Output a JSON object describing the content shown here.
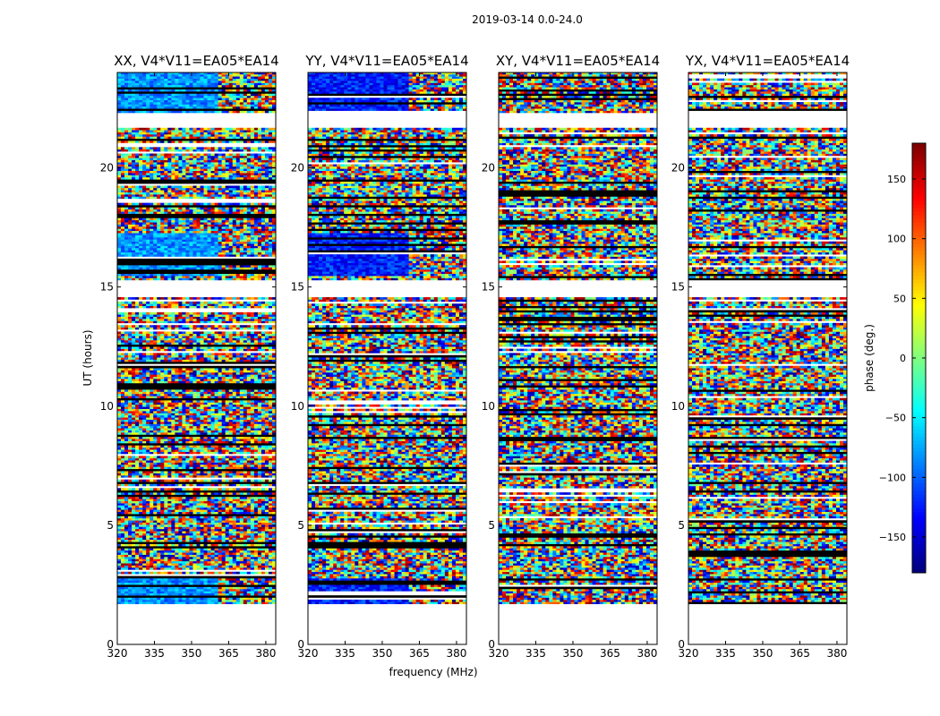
{
  "chart_data": {
    "type": "heatmap",
    "suptitle": "2019-03-14 0.0-24.0",
    "xlabel": "frequency (MHz)",
    "ylabel": "UT (hours)",
    "xlim": [
      320,
      384
    ],
    "ylim": [
      0,
      24
    ],
    "xticks": [
      "320",
      "335",
      "350",
      "365",
      "380"
    ],
    "yticks": [
      "0",
      "5",
      "10",
      "15",
      "20"
    ],
    "panels": [
      {
        "title": "XX, V4*V11=EA05*EA14",
        "correlation": "XX"
      },
      {
        "title": "YY, V4*V11=EA05*EA14",
        "correlation": "YY"
      },
      {
        "title": "XY, V4*V11=EA05*EA14",
        "correlation": "XY"
      },
      {
        "title": "YX, V4*V11=EA05*EA14",
        "correlation": "YX"
      }
    ],
    "data_time_range": [
      1.7,
      24.0
    ],
    "data_gaps": [
      [
        14.5,
        15.2
      ],
      [
        21.6,
        22.3
      ]
    ],
    "colorbar": {
      "label": "phase (deg.)",
      "range": [
        -180,
        180
      ],
      "ticks": [
        "150",
        "100",
        "50",
        "0",
        "−50",
        "−100",
        "−150"
      ],
      "colormap": [
        "#00007f",
        "#0000ff",
        "#007fff",
        "#00ffff",
        "#7fff7f",
        "#ffff00",
        "#ff7f00",
        "#ff0000",
        "#7f0000"
      ]
    }
  }
}
